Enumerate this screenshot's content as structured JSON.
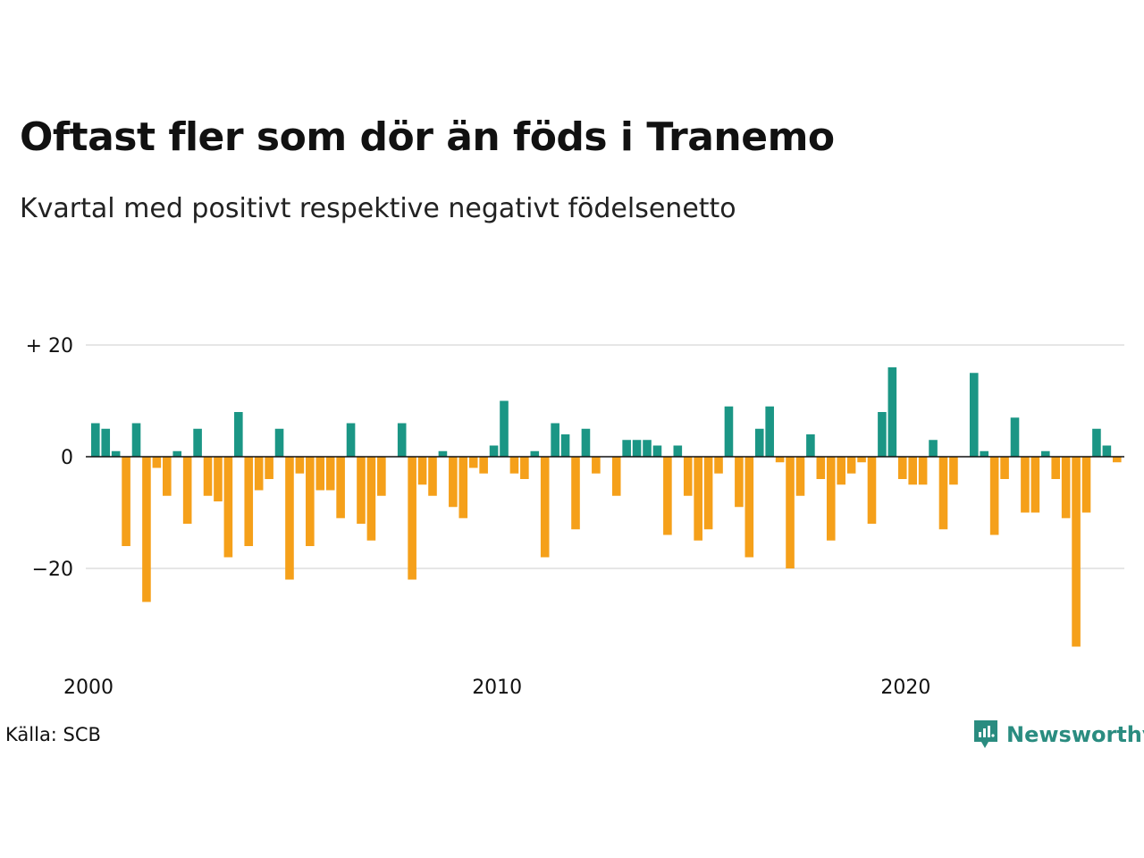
{
  "chart_data": {
    "type": "bar",
    "title": "Oftast fler som dör än föds i Tranemo",
    "subtitle": "Kvartal med positivt respektive negativt födelsenetto",
    "x_start": "2000-Q1",
    "x_ticks": [
      "2000",
      "2010",
      "2020"
    ],
    "y_ticks": [
      {
        "value": 20,
        "label": "+ 20"
      },
      {
        "value": 0,
        "label": "0"
      },
      {
        "value": -20,
        "label": "−20"
      }
    ],
    "ylim": [
      -35,
      20
    ],
    "grid": true,
    "values": [
      6,
      5,
      1,
      -16,
      6,
      -26,
      -2,
      -7,
      1,
      -12,
      5,
      -7,
      -8,
      -18,
      8,
      -16,
      -6,
      -4,
      5,
      -22,
      -3,
      -16,
      -6,
      -6,
      -11,
      6,
      -12,
      -15,
      -7,
      0,
      6,
      -22,
      -5,
      -7,
      1,
      -9,
      -11,
      -2,
      -3,
      2,
      10,
      -3,
      -4,
      1,
      -18,
      6,
      4,
      -13,
      5,
      -3,
      0,
      -7,
      3,
      3,
      3,
      2,
      -14,
      2,
      -7,
      -15,
      -13,
      -3,
      9,
      -9,
      -18,
      5,
      9,
      -1,
      -20,
      -7,
      4,
      -4,
      -15,
      -5,
      -3,
      -1,
      -12,
      8,
      16,
      -4,
      -5,
      -5,
      3,
      -13,
      -5,
      0,
      15,
      1,
      -14,
      -4,
      7,
      -10,
      -10,
      1,
      -4,
      -11,
      -34,
      -10,
      5,
      2,
      -1
    ],
    "colors": {
      "positive": "#1b9685",
      "negative": "#f5a01a"
    }
  },
  "footer": {
    "source": "Källa: SCB",
    "brand": "Newsworthy"
  },
  "icons": {
    "logo": "newsworthy-logo-icon"
  }
}
